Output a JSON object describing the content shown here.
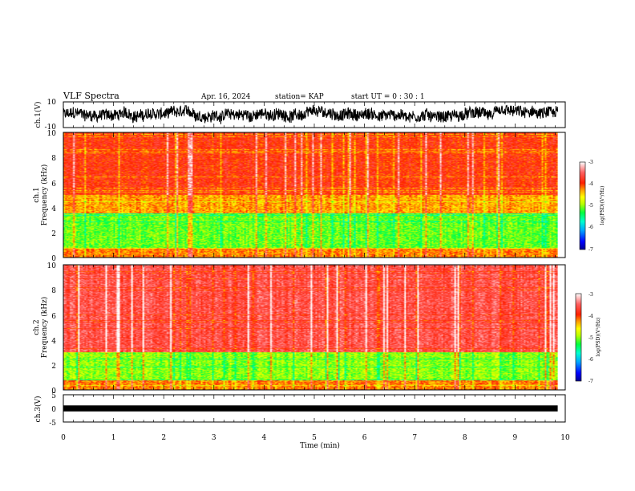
{
  "header": {
    "title": "VLF Spectra",
    "date": "Apr. 16, 2024",
    "station": "station= KAP",
    "start": "start UT =  0 : 30 : 1"
  },
  "colors": {
    "waveform": "#000000",
    "colormap": [
      "#000090",
      "#0000ff",
      "#00a8ff",
      "#00ffd0",
      "#00ff40",
      "#b8ff00",
      "#ffff00",
      "#ffa000",
      "#ff2000",
      "#ff4040",
      "#ffb0b0",
      "#ffffff"
    ]
  },
  "chart_data": [
    {
      "type": "line",
      "panel": "ch1-waveform",
      "ylabel": "ch.1(V)",
      "ylim": [
        -10,
        10
      ],
      "yticks": [
        "10",
        "-10"
      ],
      "xlim": [
        0,
        10
      ],
      "approx_value_range": [
        -8,
        7
      ]
    },
    {
      "type": "heatmap",
      "panel": "ch1-spectrogram",
      "ylabel_line1": "ch.1",
      "ylabel_line2": "Frequency (kHz)",
      "ylim": [
        0,
        10
      ],
      "yticks": [
        "0",
        "2",
        "4",
        "6",
        "8",
        "10"
      ],
      "xlim": [
        0,
        9.85
      ],
      "colorbar": {
        "label": "log(PSD)(V²/Hz)",
        "range": [
          -7,
          -3
        ],
        "ticks": [
          "-3",
          "-4",
          "-5",
          "-6",
          "-7"
        ]
      },
      "bands": [
        {
          "f_range": [
            0,
            0.8
          ],
          "level": -4.2
        },
        {
          "f_range": [
            0.8,
            3.5
          ],
          "level": -5.1
        },
        {
          "f_range": [
            3.5,
            5.0
          ],
          "level": -4.3
        },
        {
          "f_range": [
            5.0,
            10
          ],
          "level": -3.9
        }
      ]
    },
    {
      "type": "heatmap",
      "panel": "ch2-spectrogram",
      "ylabel_line1": "ch.2",
      "ylabel_line2": "Frequency (kHz)",
      "ylim": [
        0,
        10
      ],
      "yticks": [
        "0",
        "2",
        "4",
        "6",
        "8",
        "10"
      ],
      "xlim": [
        0,
        9.85
      ],
      "colorbar": {
        "label": "log(PSD)(V²/Hz)",
        "range": [
          -7,
          -3
        ],
        "ticks": [
          "-3",
          "-4",
          "-5",
          "-6",
          "-7"
        ]
      },
      "bands": [
        {
          "f_range": [
            0,
            0.8
          ],
          "level": -4.2
        },
        {
          "f_range": [
            0.8,
            3.0
          ],
          "level": -5.0
        },
        {
          "f_range": [
            3.0,
            10
          ],
          "level": -3.6
        }
      ]
    },
    {
      "type": "line",
      "panel": "ch3-waveform",
      "ylabel": "ch.3(V)",
      "ylim": [
        -5,
        5
      ],
      "yticks": [
        "5",
        "0",
        "-5"
      ],
      "xlim": [
        0,
        10
      ],
      "approx_value_range": [
        -0.5,
        0.5
      ]
    }
  ],
  "xaxis": {
    "label": "Time (min)",
    "ticks": [
      "0",
      "1",
      "2",
      "3",
      "4",
      "5",
      "6",
      "7",
      "8",
      "9",
      "10"
    ]
  }
}
